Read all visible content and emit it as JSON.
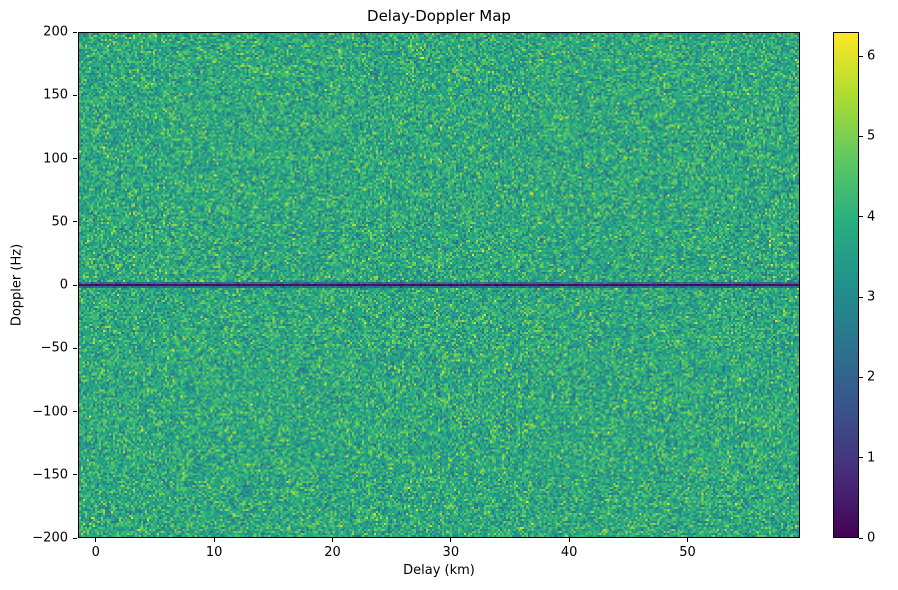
{
  "chart_data": {
    "type": "heatmap",
    "title": "Delay-Doppler Map",
    "xlabel": "Delay (km)",
    "ylabel": "Doppler (Hz)",
    "xlim": [
      -1.5,
      59.5
    ],
    "ylim": [
      -200,
      200
    ],
    "grid": false,
    "legend": null,
    "xticks": {
      "values": [
        0,
        10,
        20,
        30,
        40,
        50
      ],
      "labels": [
        "0",
        "10",
        "20",
        "30",
        "40",
        "50"
      ]
    },
    "yticks": {
      "values": [
        -200,
        -150,
        -100,
        -50,
        0,
        50,
        100,
        150,
        200
      ],
      "labels": [
        "−200",
        "−150",
        "−100",
        "−50",
        "0",
        "50",
        "100",
        "150",
        "200"
      ]
    },
    "colorbar": {
      "vmin": 0,
      "vmax": 6.3,
      "ticks": [
        0,
        1,
        2,
        3,
        4,
        5,
        6
      ],
      "tick_labels": [
        "0",
        "1",
        "2",
        "3",
        "4",
        "5",
        "6"
      ],
      "colormap": "viridis",
      "stops": [
        "#440154",
        "#472d7b",
        "#3b528b",
        "#2c728e",
        "#21918c",
        "#28ae80",
        "#5ec962",
        "#addc30",
        "#fde725"
      ],
      "position": "right"
    },
    "colors": {
      "background": "#ffffff",
      "text": "#000000",
      "spine": "#000000",
      "dominant_noise": "#26a17f"
    },
    "data_summary": {
      "description": "Uniform speckle-noise field covering the full delay-Doppler plane, with a single dark (near-zero value) horizontal stripe at 0 Hz Doppler spanning all delays.",
      "noise_mean": 3.8,
      "noise_std": 0.7,
      "noise_clip": [
        2.2,
        6.3
      ],
      "zero_doppler_line": {
        "doppler_hz": 0,
        "value_range": [
          0.0,
          0.5
        ],
        "edge_factor": 0.6
      }
    },
    "grid_size": {
      "cols": 361,
      "rows": 253
    },
    "seed": 42
  }
}
